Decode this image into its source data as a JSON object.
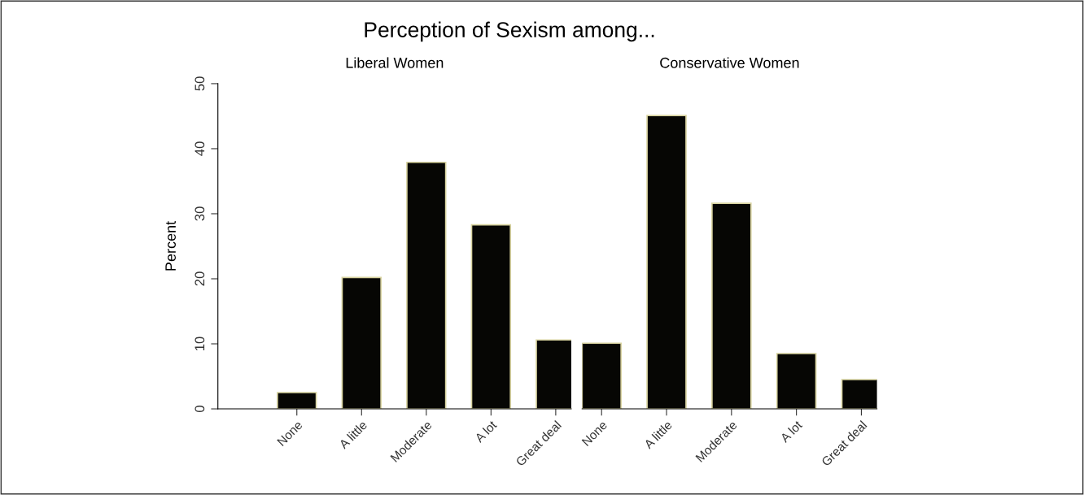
{
  "chart_data": [
    {
      "type": "bar",
      "title": "Perception of Sexism among...",
      "subtitle": "Liberal Women",
      "ylabel": "Percent",
      "categories": [
        "None",
        "A little",
        "Moderate",
        "A lot",
        "Great deal"
      ],
      "series": [
        {
          "color": "#060604",
          "values": [
            2.5,
            20.2,
            37.9,
            28.3,
            10.6
          ]
        }
      ],
      "ylim": [
        0,
        50
      ],
      "yticks": [
        0,
        10,
        20,
        30,
        40,
        50
      ],
      "grid": false,
      "legend": false
    },
    {
      "type": "bar",
      "subtitle": "Conservative Women",
      "categories": [
        "None",
        "A little",
        "Moderate",
        "A lot",
        "Great deal"
      ],
      "series": [
        {
          "color": "#060604",
          "values": [
            10.1,
            45.1,
            31.6,
            8.5,
            4.5
          ]
        }
      ],
      "ylim": [
        0,
        50
      ],
      "grid": false,
      "legend": false,
      "tick_labels": "x"
    }
  ]
}
